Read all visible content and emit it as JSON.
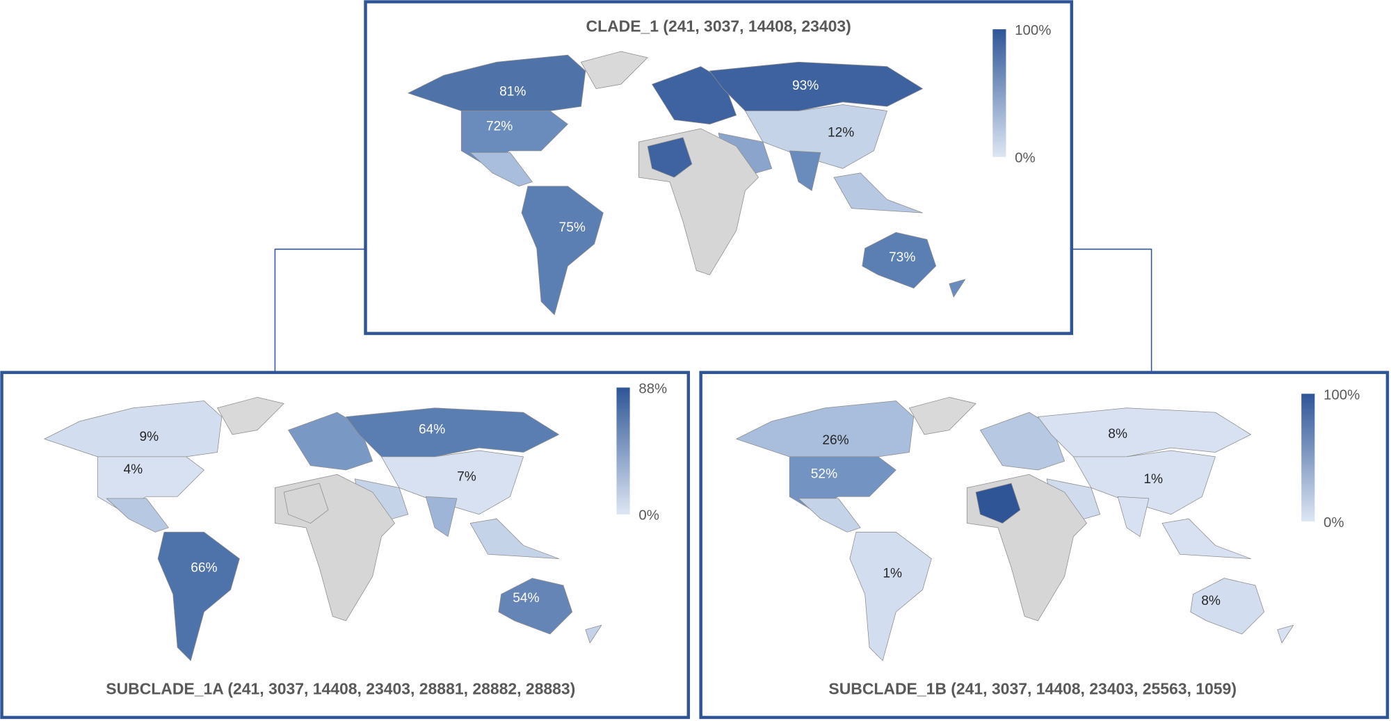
{
  "panels": [
    {
      "title": "CLADE_1 (241, 3037, 14408, 23403)",
      "labels": [
        "81%",
        "72%",
        "93%",
        "12%",
        "75%",
        "73%"
      ],
      "legend": {
        "max": "100%",
        "min": "0%"
      }
    },
    {
      "title": "SUBCLADE_1A (241, 3037, 14408, 23403, 28881, 28882, 28883)",
      "labels": [
        "9%",
        "4%",
        "64%",
        "7%",
        "66%",
        "54%"
      ],
      "legend": {
        "max": "88%",
        "min": "0%"
      }
    },
    {
      "title": "SUBCLADE_1B (241, 3037, 14408, 23403, 25563, 1059)",
      "labels": [
        "26%",
        "52%",
        "8%",
        "1%",
        "1%",
        "8%"
      ],
      "legend": {
        "max": "100%",
        "min": "0%"
      }
    }
  ]
}
